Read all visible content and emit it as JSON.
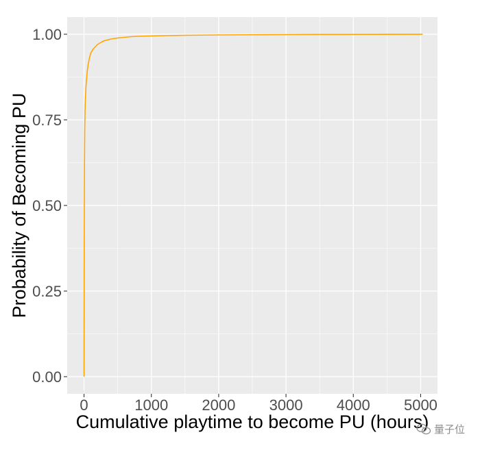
{
  "chart_data": {
    "type": "line",
    "title": "",
    "xlabel": "Cumulative playtime to become PU (hours)",
    "ylabel": "Probability of Becoming PU",
    "xlim": [
      -250,
      5250
    ],
    "ylim": [
      -0.05,
      1.05
    ],
    "x_ticks": [
      0,
      1000,
      2000,
      3000,
      4000,
      5000
    ],
    "x_tick_labels": [
      "0",
      "1000",
      "2000",
      "3000",
      "4000",
      "5000"
    ],
    "y_ticks": [
      0,
      0.25,
      0.5,
      0.75,
      1.0
    ],
    "y_tick_labels": [
      "0.00",
      "0.25",
      "0.50",
      "0.75",
      "1.00"
    ],
    "grid": true,
    "background": "#ebebeb",
    "grid_color": "#ffffff",
    "series": [
      {
        "color": "#ffa500",
        "x": [
          0,
          3,
          6,
          10,
          15,
          20,
          30,
          40,
          50,
          60,
          80,
          100,
          130,
          160,
          200,
          250,
          300,
          400,
          500,
          600,
          700,
          800,
          1000,
          1200,
          1500,
          2000,
          2500,
          3000,
          3500,
          4000,
          4500,
          5030
        ],
        "y": [
          0.0,
          0.4,
          0.6,
          0.72,
          0.78,
          0.81,
          0.85,
          0.875,
          0.895,
          0.91,
          0.93,
          0.945,
          0.955,
          0.962,
          0.97,
          0.976,
          0.981,
          0.986,
          0.989,
          0.991,
          0.993,
          0.994,
          0.995,
          0.996,
          0.997,
          0.998,
          0.9985,
          0.999,
          0.9993,
          0.9995,
          0.9997,
          0.9999
        ]
      }
    ]
  },
  "watermark": {
    "text": "量子位",
    "icon": "wechat-icon"
  }
}
